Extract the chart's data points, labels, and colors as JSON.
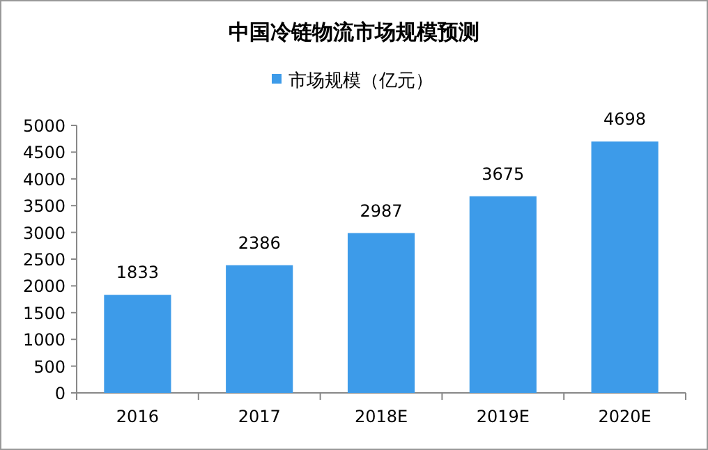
{
  "chart_data": {
    "type": "bar",
    "title": "中国冷链物流市场规模预测",
    "categories": [
      "2016",
      "2017",
      "2018E",
      "2019E",
      "2020E"
    ],
    "series": [
      {
        "name": "市场规模（亿元）",
        "color": "#3d9be9",
        "values": [
          1833,
          2386,
          2987,
          3675,
          4698
        ]
      }
    ],
    "ylim": [
      0,
      5000
    ],
    "yticks": [
      0,
      500,
      1000,
      1500,
      2000,
      2500,
      3000,
      3500,
      4000,
      4500,
      5000
    ],
    "data_labels": true,
    "legend": "top",
    "grid": false
  }
}
